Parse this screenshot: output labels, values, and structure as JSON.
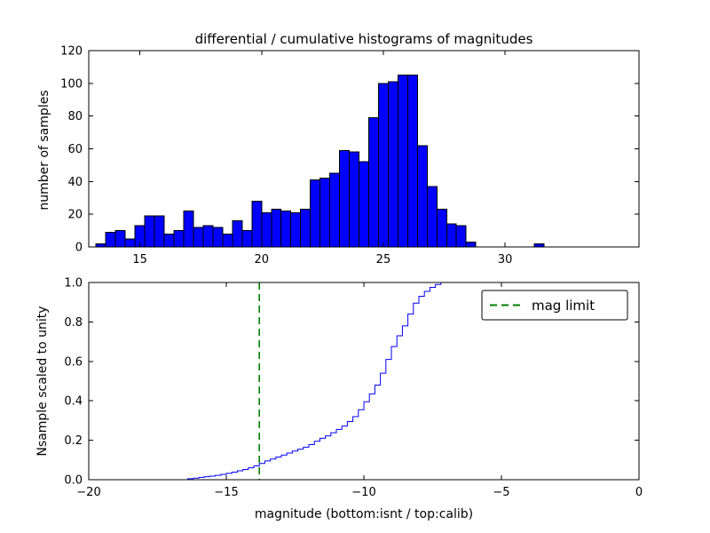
{
  "title": "differential / cumulative histograms of magnitudes",
  "colors": {
    "bar_fill": "#0000ff",
    "bar_edge": "#000000",
    "cumulative_line": "#0000ff",
    "mag_limit_line": "#008000",
    "axes": "#000000",
    "background": "#ffffff"
  },
  "chart_data": [
    {
      "type": "bar",
      "role": "differential-histogram",
      "ylabel": "number of samples",
      "xlim": [
        12.9,
        35.5
      ],
      "ylim": [
        0,
        120
      ],
      "xticks": [
        15,
        20,
        25,
        30
      ],
      "xticklabels": [
        "15",
        "20",
        "25",
        "30"
      ],
      "yticks": [
        0,
        20,
        40,
        60,
        80,
        100,
        120
      ],
      "yticklabels": [
        "0",
        "20",
        "40",
        "60",
        "80",
        "100",
        "120"
      ],
      "bins_start": 13.2,
      "bin_width": 0.4,
      "heights": [
        2,
        9,
        10,
        5,
        13,
        19,
        19,
        8,
        10,
        22,
        12,
        13,
        12,
        8,
        16,
        10,
        28,
        21,
        23,
        22,
        21,
        23,
        41,
        42,
        45,
        59,
        58,
        52,
        79,
        100,
        101,
        105,
        105,
        62,
        37,
        23,
        14,
        13,
        3
      ],
      "isolated_bar": {
        "x": 31.2,
        "height": 2
      },
      "bar_color": "#0000ff",
      "bar_edge_color": "#000000",
      "grid": false
    },
    {
      "type": "line",
      "role": "cumulative-histogram",
      "step": true,
      "ylabel": "Nsample scaled to unity",
      "xlabel": "magnitude (bottom:isnt / top:calib)",
      "xlim": [
        -20,
        0
      ],
      "ylim": [
        0.0,
        1.0
      ],
      "xticks": [
        -20,
        -15,
        -10,
        -5,
        0
      ],
      "xticklabels": [
        "−20",
        "−15",
        "−10",
        "−5",
        "0"
      ],
      "yticks": [
        0.0,
        0.2,
        0.4,
        0.6,
        0.8,
        1.0
      ],
      "yticklabels": [
        "0.0",
        "0.2",
        "0.4",
        "0.6",
        "0.8",
        "1.0"
      ],
      "x": [
        -16.6,
        -16.4,
        -16.2,
        -16.0,
        -15.8,
        -15.6,
        -15.4,
        -15.2,
        -15.0,
        -14.8,
        -14.6,
        -14.4,
        -14.2,
        -14.0,
        -13.8,
        -13.6,
        -13.4,
        -13.2,
        -13.0,
        -12.8,
        -12.6,
        -12.4,
        -12.2,
        -12.0,
        -11.8,
        -11.6,
        -11.4,
        -11.2,
        -11.0,
        -10.8,
        -10.6,
        -10.4,
        -10.2,
        -10.0,
        -9.8,
        -9.6,
        -9.4,
        -9.2,
        -9.0,
        -8.8,
        -8.6,
        -8.4,
        -8.2,
        -8.0,
        -7.8,
        -7.6,
        -7.4,
        -7.2,
        -7.0
      ],
      "y": [
        0.0,
        0.005,
        0.008,
        0.012,
        0.015,
        0.018,
        0.022,
        0.027,
        0.032,
        0.038,
        0.045,
        0.052,
        0.06,
        0.07,
        0.082,
        0.095,
        0.105,
        0.115,
        0.125,
        0.135,
        0.145,
        0.155,
        0.165,
        0.178,
        0.195,
        0.21,
        0.222,
        0.238,
        0.255,
        0.272,
        0.295,
        0.32,
        0.355,
        0.395,
        0.435,
        0.48,
        0.54,
        0.61,
        0.675,
        0.73,
        0.78,
        0.84,
        0.895,
        0.93,
        0.955,
        0.975,
        0.99,
        1.0,
        1.0
      ],
      "line_color": "#0000ff",
      "mag_limit_line": {
        "x": -13.8,
        "color": "#008000",
        "style": "dashed"
      },
      "legend": {
        "label": "mag limit",
        "position": "upper right"
      },
      "grid": false
    }
  ]
}
